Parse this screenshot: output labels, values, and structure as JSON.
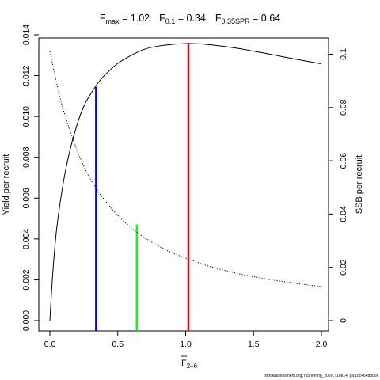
{
  "chart_data": {
    "type": "line",
    "title_parts": [
      {
        "main": "F",
        "sub": "max",
        "rest": " = 1.02"
      },
      {
        "main": "F",
        "sub": "0.1",
        "rest": " = 0.34"
      },
      {
        "main": "F",
        "sub": "0.35SPR",
        "rest": " = 0.64"
      }
    ],
    "xlabel": "F",
    "xlabel_sub": "2–6",
    "ylabel_left": "Yield per recruit",
    "ylabel_right": "SSB per recruit",
    "xlim": [
      0,
      2
    ],
    "ylim_left": [
      0,
      0.014
    ],
    "ylim_right": [
      0,
      0.1
    ],
    "x_ticks": [
      0.0,
      0.5,
      1.0,
      1.5,
      2.0
    ],
    "x_tick_labels": [
      "0.0",
      "0.5",
      "1.0",
      "1.5",
      "2.0"
    ],
    "y_left_ticks": [
      0.0,
      0.002,
      0.004,
      0.006,
      0.008,
      0.01,
      0.012,
      0.014
    ],
    "y_left_tick_labels": [
      "0.000",
      "0.002",
      "0.004",
      "0.006",
      "0.008",
      "0.010",
      "0.012",
      "0.014"
    ],
    "y_right_ticks": [
      0,
      0.02,
      0.04,
      0.06,
      0.08,
      0.1
    ],
    "y_right_tick_labels": [
      "0",
      "0.02",
      "0.04",
      "0.06",
      "0.08",
      "0.1"
    ],
    "series": [
      {
        "axis": "left",
        "style": "solid",
        "color": "#000000",
        "x": [
          0,
          0.02,
          0.05,
          0.1,
          0.15,
          0.2,
          0.25,
          0.3,
          0.35,
          0.4,
          0.5,
          0.6,
          0.7,
          0.8,
          0.9,
          1.0,
          1.02,
          1.1,
          1.2,
          1.3,
          1.4,
          1.5,
          1.6,
          1.7,
          1.8,
          1.9,
          2.0
        ],
        "y": [
          0.0,
          0.0022,
          0.0045,
          0.0068,
          0.0084,
          0.0096,
          0.0105,
          0.0111,
          0.0116,
          0.012,
          0.0126,
          0.013,
          0.0133,
          0.01345,
          0.01353,
          0.01357,
          0.01358,
          0.01356,
          0.0135,
          0.01342,
          0.01332,
          0.0132,
          0.01308,
          0.01295,
          0.01282,
          0.0127,
          0.01258
        ]
      },
      {
        "axis": "right",
        "style": "dotted",
        "color": "#000000",
        "x": [
          0,
          0.05,
          0.1,
          0.15,
          0.2,
          0.25,
          0.3,
          0.35,
          0.4,
          0.5,
          0.6,
          0.64,
          0.7,
          0.8,
          0.9,
          1.0,
          1.1,
          1.2,
          1.3,
          1.4,
          1.5,
          1.6,
          1.7,
          1.8,
          1.9,
          2.0
        ],
        "y": [
          0.101,
          0.089,
          0.079,
          0.071,
          0.064,
          0.058,
          0.053,
          0.049,
          0.0455,
          0.0395,
          0.0348,
          0.0333,
          0.031,
          0.028,
          0.0255,
          0.0235,
          0.0216,
          0.02,
          0.0187,
          0.0175,
          0.0165,
          0.0156,
          0.0148,
          0.0141,
          0.0134,
          0.0128
        ]
      }
    ],
    "reference_lines": [
      {
        "x": 0.34,
        "y_top": 0.01145,
        "color": "#0000ff"
      },
      {
        "x": 0.64,
        "y_top": 0.0047,
        "color": "#00ff00"
      },
      {
        "x": 1.02,
        "y_top": 0.01358,
        "color": "#ff0000"
      }
    ],
    "grid": false,
    "legend": "none"
  },
  "footer_text": "stockassessment.org, NSherring_2020, r10814, git 1cc464b806f"
}
